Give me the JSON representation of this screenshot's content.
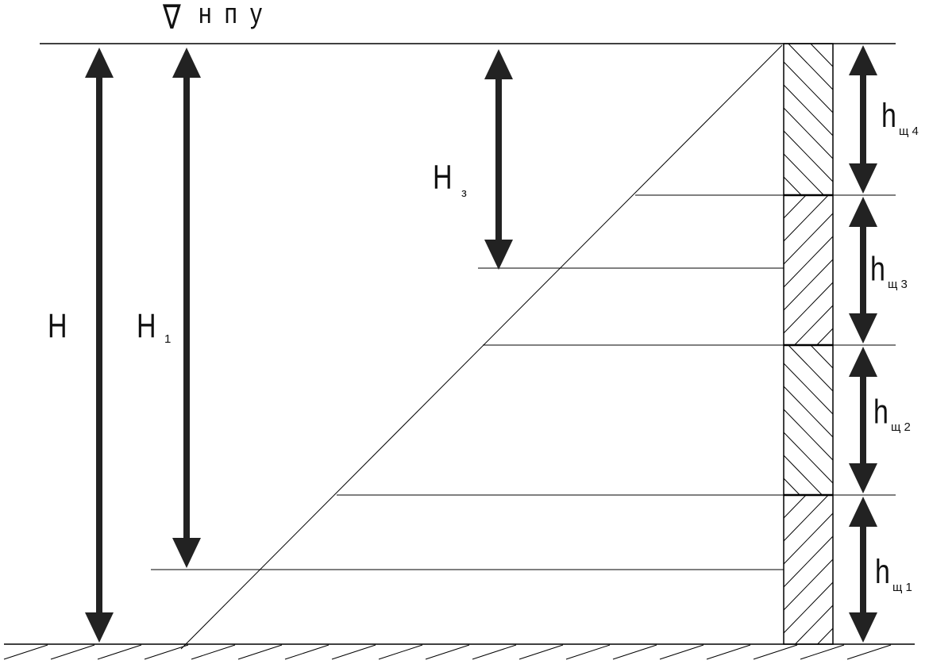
{
  "title": {
    "symbol": "∇",
    "text": "н п у"
  },
  "labels": {
    "H": "H",
    "H1": {
      "main": "H",
      "sub": "1"
    },
    "H3": {
      "main": "H",
      "sub": "з"
    },
    "h1": {
      "main": "h",
      "sub": "щ 1"
    },
    "h2": {
      "main": "h",
      "sub": "щ 2"
    },
    "h3": {
      "main": "h",
      "sub": "щ 3"
    },
    "h4": {
      "main": "h",
      "sub": "щ 4"
    }
  },
  "colors": {
    "line": "#000000",
    "arrow": "#222222"
  }
}
